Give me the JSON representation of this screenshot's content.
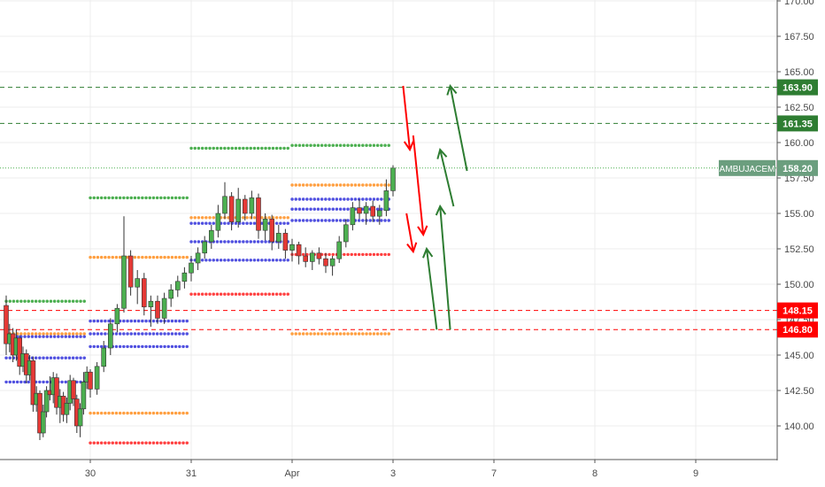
{
  "chart_data": {
    "type": "candlestick",
    "symbol": "AMBUJACEM",
    "last_price": "158.20",
    "y_ticks": [
      "140.00",
      "142.50",
      "145.00",
      "147.50",
      "150.00",
      "152.50",
      "155.00",
      "157.50",
      "160.00",
      "162.50",
      "165.00",
      "167.50",
      "170.00"
    ],
    "ylim": [
      137.5,
      170.0
    ],
    "x_ticks": [
      "30",
      "31",
      "Apr",
      "3",
      "7",
      "8",
      "9"
    ],
    "x_tick_index": [
      0,
      30,
      60,
      90,
      120,
      150,
      180
    ],
    "grid": true,
    "levels": [
      {
        "label": "163.90",
        "value": 163.9,
        "color": "#2e7d32"
      },
      {
        "label": "161.35",
        "value": 161.35,
        "color": "#2e7d32"
      },
      {
        "label": "148.15",
        "value": 148.15,
        "color": "#ff0000"
      },
      {
        "label": "146.80",
        "value": 146.8,
        "color": "#ff0000"
      }
    ],
    "dotted_levels": [
      {
        "i0": -25,
        "i1": -1,
        "value": 148.8,
        "color": "#4caf50"
      },
      {
        "i0": -25,
        "i1": -1,
        "value": 146.5,
        "color": "#ff9f40"
      },
      {
        "i0": -25,
        "i1": -1,
        "value": 146.3,
        "color": "#5050e0"
      },
      {
        "i0": -25,
        "i1": -1,
        "value": 144.8,
        "color": "#5050e0"
      },
      {
        "i0": -25,
        "i1": -1,
        "value": 143.1,
        "color": "#5050e0"
      },
      {
        "i0": 0,
        "i1": 29,
        "value": 156.1,
        "color": "#4caf50"
      },
      {
        "i0": 0,
        "i1": 29,
        "value": 151.9,
        "color": "#ff9f40"
      },
      {
        "i0": 0,
        "i1": 29,
        "value": 147.4,
        "color": "#5050e0"
      },
      {
        "i0": 0,
        "i1": 29,
        "value": 146.5,
        "color": "#5050e0"
      },
      {
        "i0": 0,
        "i1": 29,
        "value": 145.6,
        "color": "#5050e0"
      },
      {
        "i0": 0,
        "i1": 29,
        "value": 140.9,
        "color": "#ff9f40"
      },
      {
        "i0": 0,
        "i1": 29,
        "value": 138.8,
        "color": "#ff4040"
      },
      {
        "i0": 30,
        "i1": 59,
        "value": 159.6,
        "color": "#4caf50"
      },
      {
        "i0": 30,
        "i1": 59,
        "value": 154.7,
        "color": "#ff9f40"
      },
      {
        "i0": 30,
        "i1": 59,
        "value": 154.3,
        "color": "#5050e0"
      },
      {
        "i0": 30,
        "i1": 59,
        "value": 153.0,
        "color": "#5050e0"
      },
      {
        "i0": 30,
        "i1": 59,
        "value": 151.7,
        "color": "#5050e0"
      },
      {
        "i0": 30,
        "i1": 59,
        "value": 149.3,
        "color": "#ff4040"
      },
      {
        "i0": 60,
        "i1": 89,
        "value": 159.8,
        "color": "#4caf50"
      },
      {
        "i0": 60,
        "i1": 89,
        "value": 157.0,
        "color": "#ff9f40"
      },
      {
        "i0": 60,
        "i1": 89,
        "value": 156.0,
        "color": "#5050e0"
      },
      {
        "i0": 60,
        "i1": 89,
        "value": 155.3,
        "color": "#5050e0"
      },
      {
        "i0": 60,
        "i1": 89,
        "value": 154.5,
        "color": "#5050e0"
      },
      {
        "i0": 60,
        "i1": 89,
        "value": 152.1,
        "color": "#ff4040"
      },
      {
        "i0": 60,
        "i1": 89,
        "value": 146.5,
        "color": "#ff9f40"
      }
    ],
    "candles": [
      [
        148.5,
        149.2,
        145.0,
        145.8
      ],
      [
        145.8,
        147.2,
        145.2,
        146.5
      ],
      [
        146.5,
        146.9,
        144.5,
        145.0
      ],
      [
        145.0,
        146.8,
        144.6,
        146.2
      ],
      [
        146.2,
        146.4,
        143.6,
        144.2
      ],
      [
        144.2,
        145.6,
        143.8,
        145.1
      ],
      [
        145.1,
        145.4,
        143.0,
        143.6
      ],
      [
        143.6,
        145.0,
        143.2,
        144.6
      ],
      [
        144.6,
        144.9,
        141.0,
        141.5
      ],
      [
        141.5,
        142.8,
        141.0,
        142.3
      ],
      [
        142.3,
        142.5,
        139.0,
        139.5
      ],
      [
        139.5,
        141.5,
        139.2,
        141.0
      ],
      [
        141.0,
        142.8,
        140.6,
        142.5
      ],
      [
        142.5,
        143.5,
        141.8,
        142.2
      ],
      [
        142.2,
        143.8,
        141.6,
        143.4
      ],
      [
        143.4,
        143.7,
        140.8,
        141.3
      ],
      [
        141.3,
        142.6,
        140.2,
        142.1
      ],
      [
        142.1,
        142.4,
        140.3,
        140.8
      ],
      [
        140.8,
        142.0,
        140.2,
        141.6
      ],
      [
        141.6,
        143.6,
        141.1,
        143.2
      ],
      [
        143.2,
        143.4,
        141.4,
        141.9
      ],
      [
        141.9,
        142.2,
        139.5,
        140.0
      ],
      [
        140.0,
        141.6,
        139.2,
        141.2
      ],
      [
        141.2,
        143.8,
        140.8,
        143.1
      ],
      [
        143.1,
        144.2,
        142.6,
        143.8
      ],
      [
        143.8,
        144.0,
        142.0,
        142.6
      ],
      [
        142.6,
        144.5,
        142.2,
        144.2
      ],
      [
        144.2,
        146.0,
        143.8,
        145.5
      ],
      [
        145.5,
        147.6,
        145.0,
        147.2
      ],
      [
        147.2,
        148.6,
        146.6,
        148.3
      ],
      [
        148.3,
        154.8,
        148.0,
        152.0
      ],
      [
        152.0,
        152.4,
        149.2,
        149.8
      ],
      [
        149.8,
        151.0,
        148.6,
        150.4
      ],
      [
        150.4,
        150.8,
        147.8,
        148.4
      ],
      [
        148.4,
        149.2,
        147.0,
        148.8
      ],
      [
        148.8,
        149.2,
        147.2,
        147.6
      ],
      [
        147.6,
        149.4,
        147.2,
        149.0
      ],
      [
        149.0,
        150.0,
        148.4,
        149.6
      ],
      [
        149.6,
        150.6,
        149.1,
        150.2
      ],
      [
        150.2,
        151.2,
        149.7,
        150.8
      ],
      [
        150.8,
        152.0,
        150.2,
        151.5
      ],
      [
        151.5,
        152.6,
        151.0,
        152.2
      ],
      [
        152.2,
        153.4,
        151.8,
        153.0
      ],
      [
        153.0,
        154.2,
        152.5,
        153.8
      ],
      [
        153.8,
        155.6,
        153.3,
        155.0
      ],
      [
        155.0,
        157.2,
        154.6,
        156.2
      ],
      [
        156.2,
        156.5,
        153.8,
        154.4
      ],
      [
        154.4,
        156.8,
        154.0,
        156.0
      ],
      [
        156.0,
        156.3,
        154.5,
        155.0
      ],
      [
        155.0,
        156.6,
        154.6,
        156.1
      ],
      [
        156.1,
        156.4,
        153.2,
        153.8
      ],
      [
        153.8,
        155.0,
        153.1,
        154.6
      ],
      [
        154.6,
        154.9,
        152.4,
        153.0
      ],
      [
        153.0,
        154.2,
        152.5,
        153.6
      ],
      [
        153.6,
        153.9,
        151.8,
        152.4
      ],
      [
        152.4,
        153.2,
        151.6,
        152.8
      ],
      [
        152.8,
        153.0,
        151.4,
        152.0
      ],
      [
        152.0,
        152.6,
        151.2,
        151.6
      ],
      [
        151.6,
        152.4,
        151.0,
        152.2
      ],
      [
        152.2,
        152.6,
        151.4,
        151.8
      ],
      [
        151.8,
        152.2,
        150.8,
        151.3
      ],
      [
        151.3,
        152.0,
        150.6,
        151.8
      ],
      [
        151.8,
        153.4,
        151.5,
        153.0
      ],
      [
        153.0,
        154.6,
        152.6,
        154.2
      ],
      [
        154.2,
        155.8,
        153.8,
        155.4
      ],
      [
        155.4,
        156.0,
        154.6,
        155.0
      ],
      [
        155.0,
        155.8,
        154.2,
        155.5
      ],
      [
        155.5,
        155.9,
        154.4,
        154.8
      ],
      [
        154.8,
        155.6,
        154.2,
        155.2
      ],
      [
        155.2,
        157.4,
        154.8,
        156.6
      ],
      [
        156.6,
        158.4,
        156.2,
        158.2
      ]
    ],
    "candle_x_index": [
      -25,
      -24,
      -23,
      -22,
      -21,
      -20,
      -19,
      -18,
      -17,
      -16,
      -15,
      -14,
      -13,
      -12,
      -11,
      -10,
      -9,
      -8,
      -7,
      -6,
      -5,
      -4,
      -3,
      -2,
      -1,
      0,
      2,
      4,
      6,
      8,
      10,
      12,
      14,
      16,
      18,
      20,
      22,
      24,
      26,
      28,
      30,
      32,
      34,
      36,
      38,
      40,
      42,
      44,
      46,
      48,
      50,
      52,
      54,
      56,
      58,
      60,
      62,
      64,
      66,
      68,
      70,
      72,
      74,
      76,
      78,
      80,
      82,
      84,
      86,
      88,
      90
    ],
    "annotation_arrows": [
      {
        "i": 93,
        "from": 164.0,
        "to_i": 95,
        "to": 159.5,
        "color": "#ff0000"
      },
      {
        "i": 96,
        "from": 160.5,
        "to_i": 99,
        "to": 153.5,
        "color": "#ff0000"
      },
      {
        "i": 94,
        "from": 155.0,
        "to_i": 96,
        "to": 152.3,
        "color": "#ff0000"
      },
      {
        "i": 112,
        "from": 158.0,
        "to_i": 107,
        "to": 164.0,
        "color": "#2e7d32"
      },
      {
        "i": 108,
        "from": 155.5,
        "to_i": 104,
        "to": 159.5,
        "color": "#2e7d32"
      },
      {
        "i": 107,
        "from": 146.8,
        "to_i": 104,
        "to": 155.5,
        "color": "#2e7d32"
      },
      {
        "i": 103,
        "from": 146.8,
        "to_i": 100,
        "to": 152.5,
        "color": "#2e7d32"
      }
    ]
  },
  "colors": {
    "up": "#26a69a",
    "down": "#ef5350",
    "candle_body_up": "#4caf50",
    "candle_body_down": "#e53935",
    "last_price": "#6b9e7e"
  }
}
